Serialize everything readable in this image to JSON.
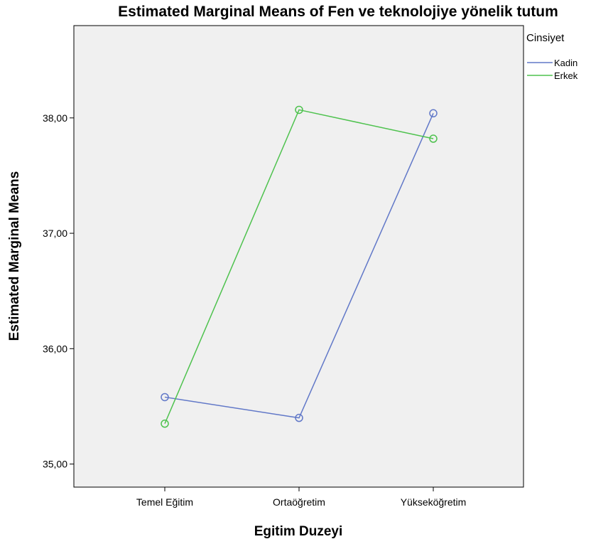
{
  "chart_data": {
    "type": "line",
    "title": "Estimated Marginal Means of Fen ve teknolojiye yönelik tutum",
    "xlabel": "Egitim Duzeyi",
    "ylabel": "Estimated Marginal Means",
    "categories": [
      "Temel Eğitim",
      "Ortaöğretim",
      "Yükseköğretim"
    ],
    "y_ticks": [
      35.0,
      36.0,
      37.0,
      38.0
    ],
    "y_tick_labels": [
      "35,00",
      "36,00",
      "37,00",
      "38,00"
    ],
    "ylim": [
      34.8,
      38.8
    ],
    "legend": {
      "title": "Cinsiyet",
      "placement": "top-right-outside"
    },
    "grid": false,
    "series": [
      {
        "name": "Kadin",
        "color": "#6178c8",
        "values": [
          35.58,
          35.4,
          38.04
        ]
      },
      {
        "name": "Erkek",
        "color": "#4ec24e",
        "values": [
          35.35,
          38.07,
          37.82
        ]
      }
    ]
  }
}
